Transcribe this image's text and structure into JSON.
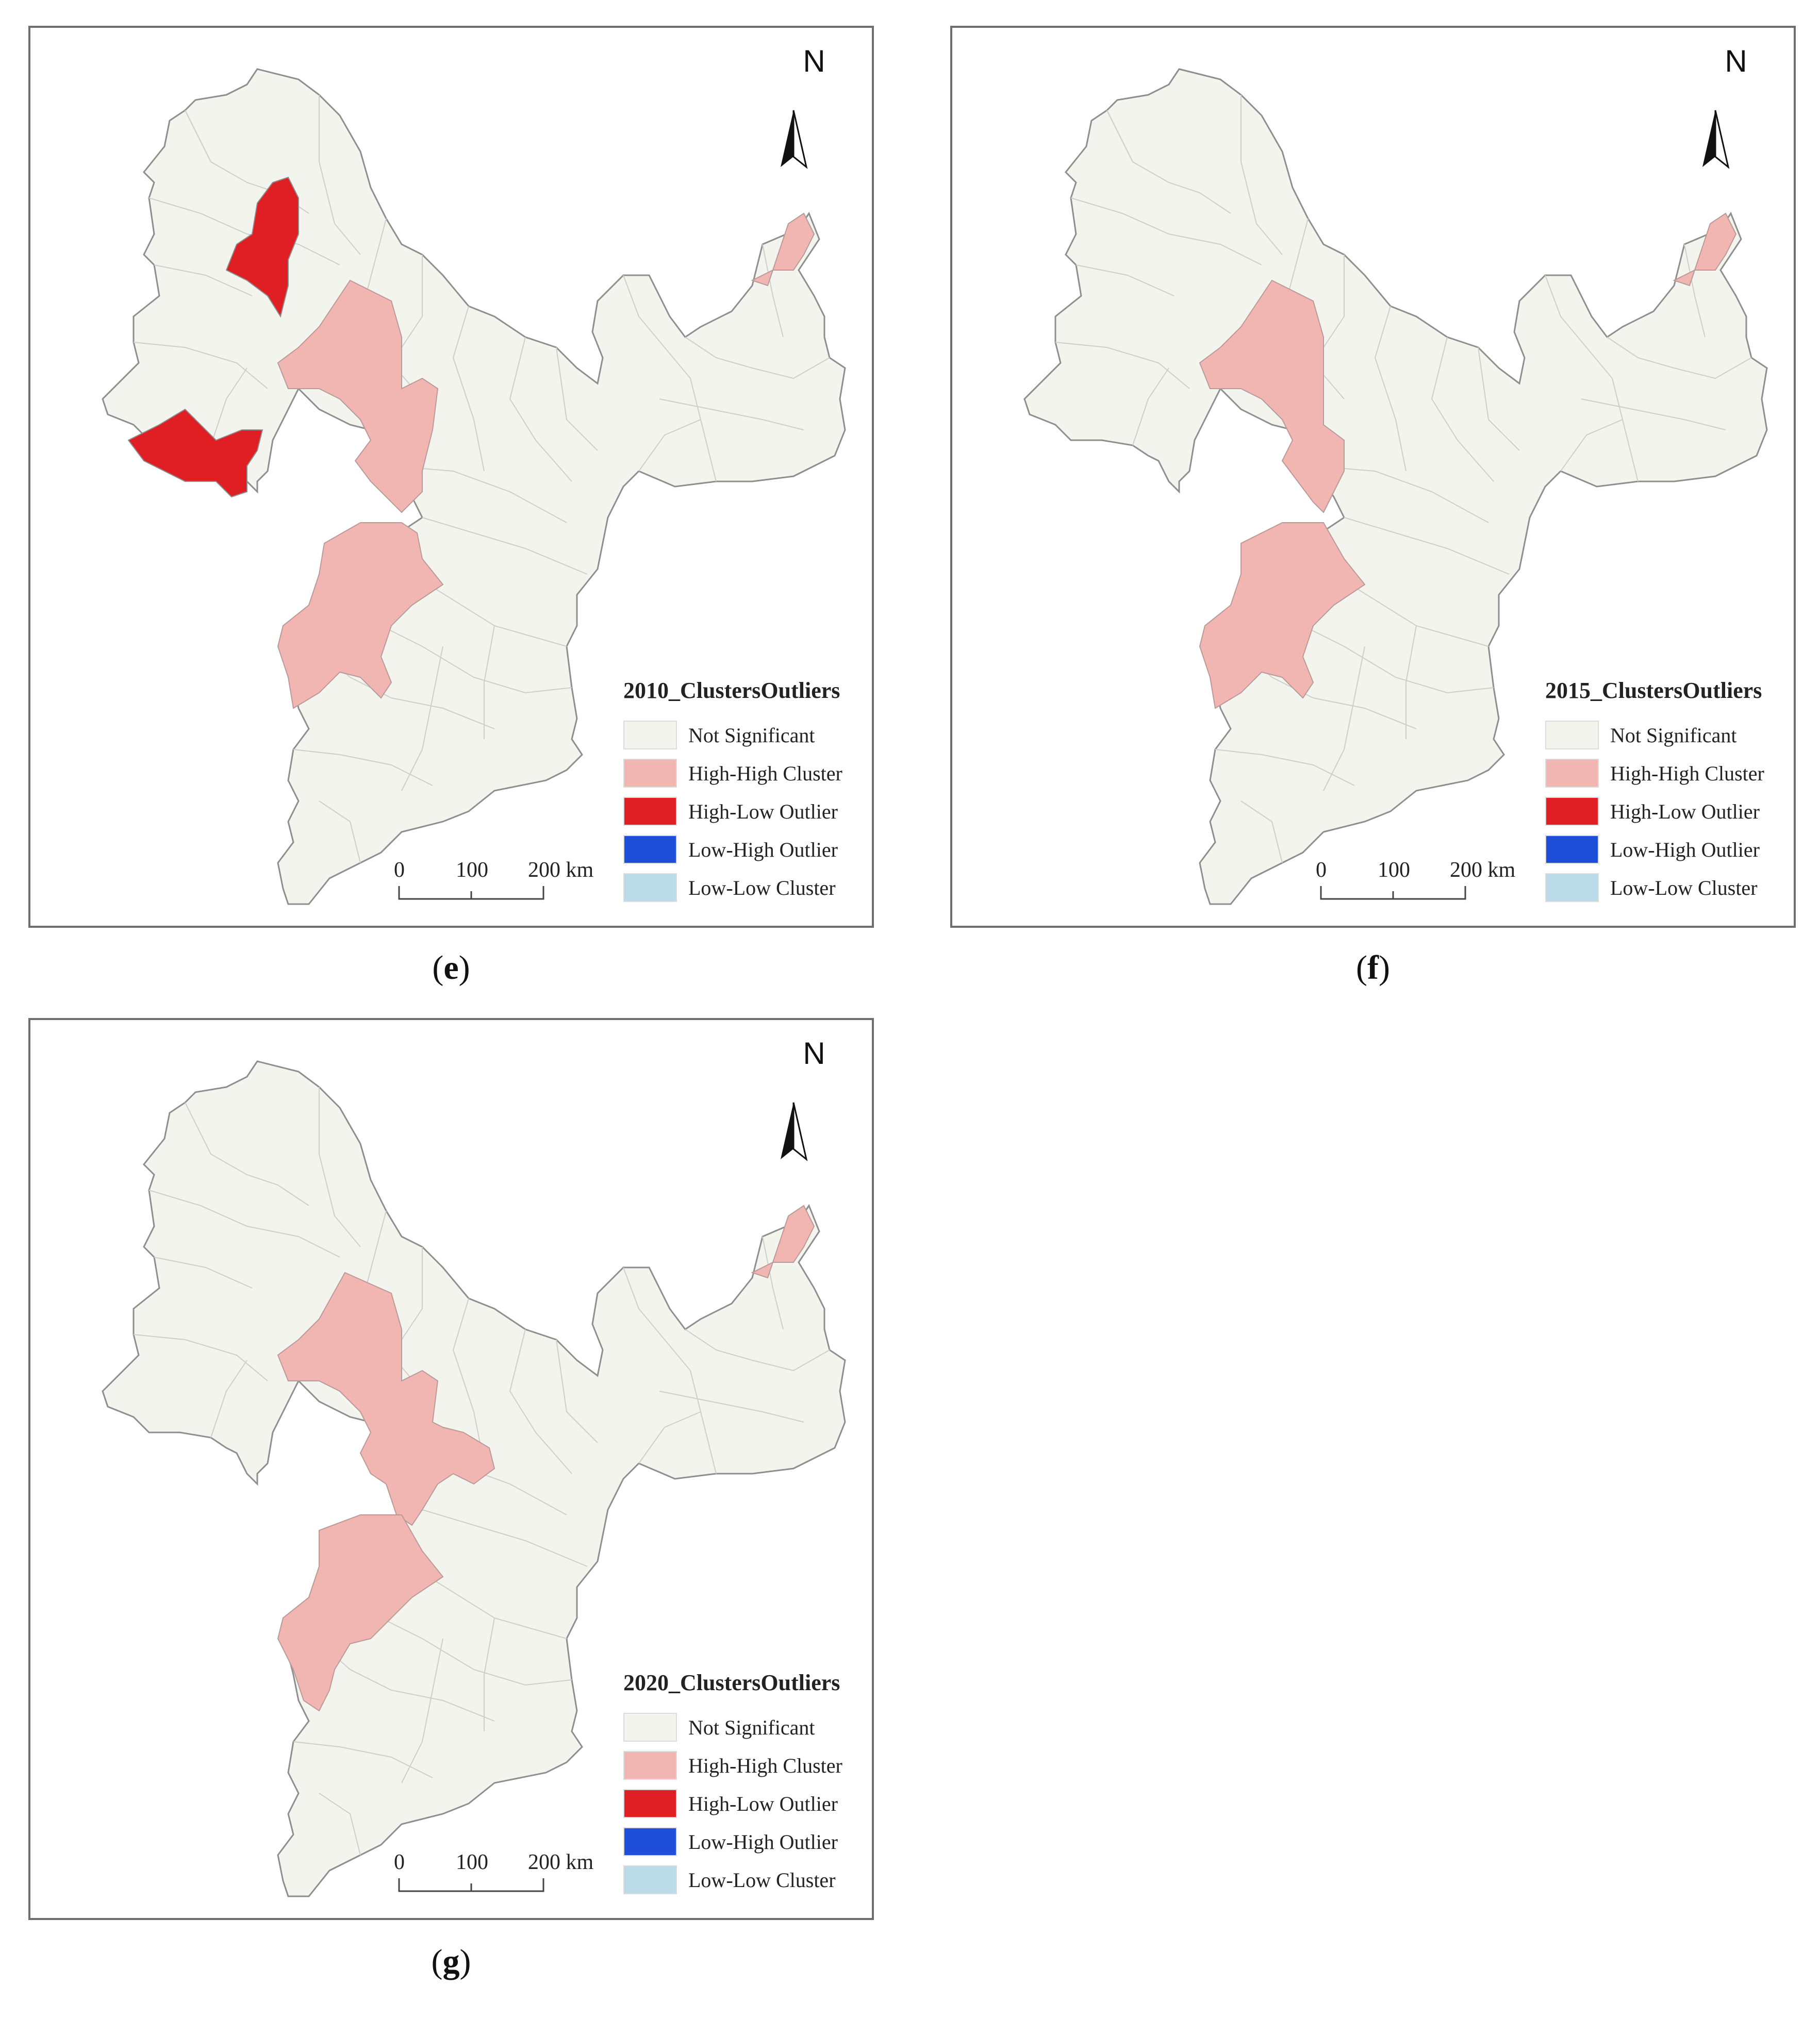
{
  "colors": {
    "not_significant": "#f4f4ef",
    "high_high": "#f2b6b2",
    "high_low": "#df1f23",
    "low_high": "#1f4fd9",
    "low_low": "#bcdbe9",
    "boundary": "#8e8e8e",
    "inner_boundary": "#cfcfca"
  },
  "north": {
    "label": "N"
  },
  "scale": {
    "tick0": "0",
    "tick1": "100",
    "tick2": "200 km"
  },
  "legend_items": {
    "ns": "Not Significant",
    "hh": "High-High Cluster",
    "hl": "High-Low Outlier",
    "lh": "Low-High Outlier",
    "ll": "Low-Low Cluster"
  },
  "panels": {
    "e": {
      "legend_title": "2010_ClustersOutliers",
      "caption": "e"
    },
    "f": {
      "legend_title": "2015_ClustersOutliers",
      "caption": "f"
    },
    "g": {
      "legend_title": "2020_ClustersOutliers",
      "caption": "g"
    }
  }
}
